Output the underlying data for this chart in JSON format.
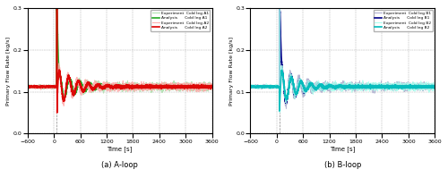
{
  "xlim": [
    -600,
    3600
  ],
  "ylim": [
    0.0,
    0.3
  ],
  "yticks": [
    0.0,
    0.1,
    0.2,
    0.3
  ],
  "xticks": [
    -600,
    0,
    600,
    1200,
    1800,
    2400,
    3000,
    3600
  ],
  "xlabel": "Time [s]",
  "ylabel": "Primary Flow Rate [kg/s]",
  "vline_x": 60,
  "subtitle_a": "(a) A-loop",
  "subtitle_b": "(b) B-loop",
  "steady": 0.112,
  "event_t": 60,
  "legend_a": [
    {
      "label": "Experiment  Cold leg A1",
      "color": "#aaddaa",
      "lw": 0.7
    },
    {
      "label": "Analysis      Cold leg A1",
      "color": "#22aa22",
      "lw": 1.2
    },
    {
      "label": "Experiment  Cold leg A2",
      "color": "#ffaaaa",
      "lw": 0.7
    },
    {
      "label": "Analysis      Cold leg A2",
      "color": "#dd0000",
      "lw": 1.2
    }
  ],
  "legend_b": [
    {
      "label": "Experiment  Cold leg B1",
      "color": "#aaaacc",
      "lw": 0.7
    },
    {
      "label": "Analysis      Cold leg B1",
      "color": "#000088",
      "lw": 1.2
    },
    {
      "label": "Experiment  Cold leg B2",
      "color": "#aaffee",
      "lw": 0.7
    },
    {
      "label": "Analysis      Cold leg B2",
      "color": "#00bbbb",
      "lw": 1.2
    }
  ]
}
